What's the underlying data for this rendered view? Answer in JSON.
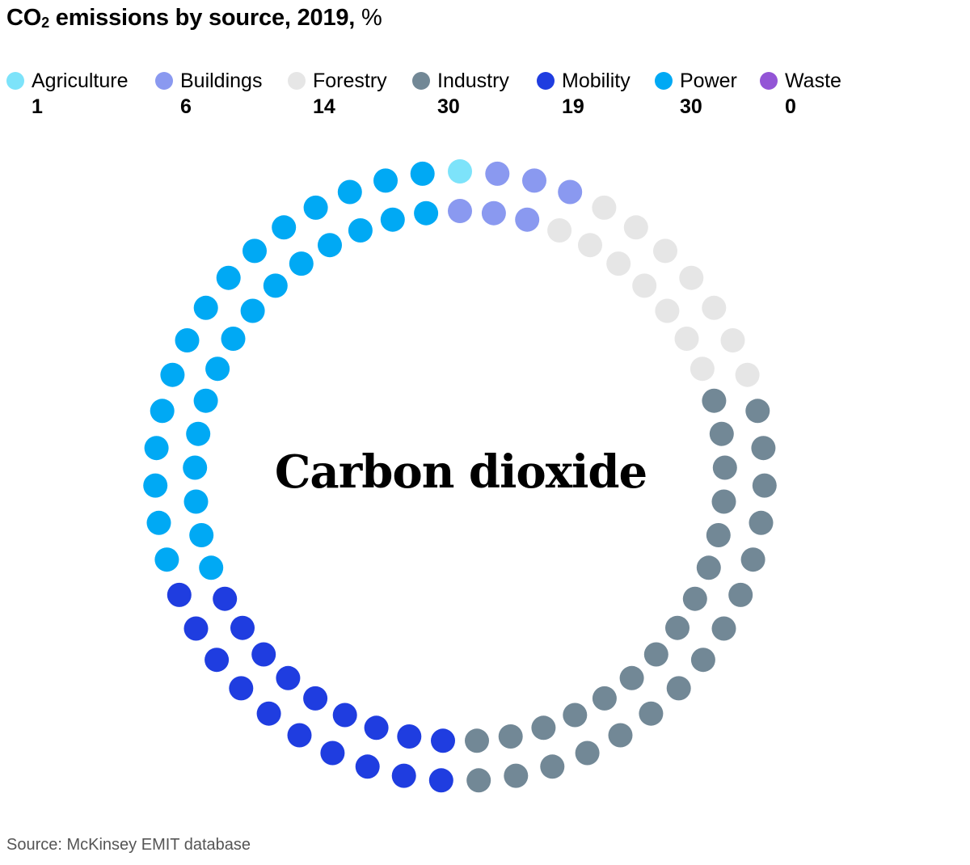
{
  "chart_data": {
    "type": "dot-ring",
    "title": {
      "prefix": "CO",
      "subscript": "2",
      "main": " emissions by source, 2019, ",
      "unit": "%"
    },
    "center_label": "Carbon dioxide",
    "source": "Source: McKinsey EMIT database",
    "categories": [
      "Agriculture",
      "Buildings",
      "Forestry",
      "Industry",
      "Mobility",
      "Power",
      "Waste"
    ],
    "values": [
      1,
      6,
      14,
      30,
      19,
      30,
      0
    ],
    "colors": [
      "#7de3fa",
      "#8a99f0",
      "#e6e6e6",
      "#728896",
      "#1f3de0",
      "#00a9f4",
      "#9355d6"
    ],
    "legend_placement": "top",
    "grid": false
  }
}
